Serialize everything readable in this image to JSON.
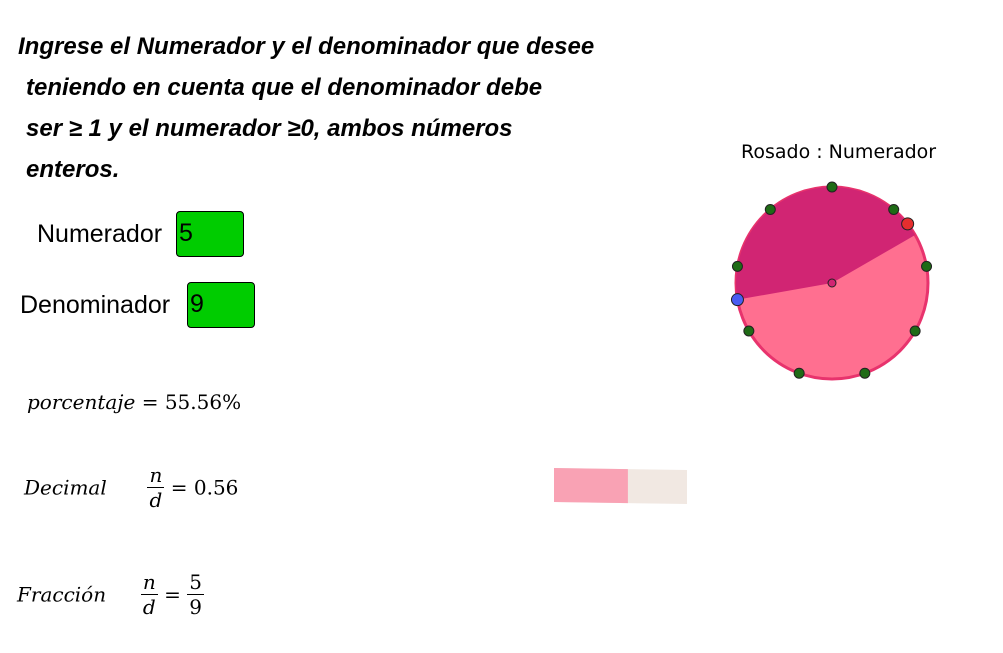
{
  "instructions": {
    "line1": "Ingrese el Numerador y el denominador que desee",
    "line2": "teniendo en cuenta que el denominador debe",
    "line3": "ser ≥ 1 y el numerador ≥0, ambos números",
    "line4": "enteros."
  },
  "numerator": {
    "label": "Numerador",
    "value": "5"
  },
  "denominator": {
    "label": "Denominador",
    "value": "9"
  },
  "percentage": {
    "label": "porcentaje",
    "equals": "=",
    "value": "55.56%"
  },
  "decimal": {
    "label": "Decimal",
    "num_symbol": "n",
    "den_symbol": "d",
    "equals": "=",
    "value": "0.56"
  },
  "fraction": {
    "label": "Fracción",
    "num_symbol": "n",
    "den_symbol": "d",
    "equals": "=",
    "num_value": "5",
    "den_value": "9"
  },
  "pie": {
    "caption": "Rosado : Numerador",
    "numerator": 5,
    "denominator": 9,
    "colors": {
      "fill_light": "#ff6f90",
      "fill_dark": "#d12573",
      "stroke": "#e8336d",
      "point_dark": "#1f6b16",
      "point_red": "#e62e2e",
      "point_blue": "#4a5cf2"
    }
  },
  "progress_bar": {
    "fraction": 0.5556,
    "colors": {
      "filled": "#f9a2b4",
      "empty": "#f1e8e2"
    }
  }
}
